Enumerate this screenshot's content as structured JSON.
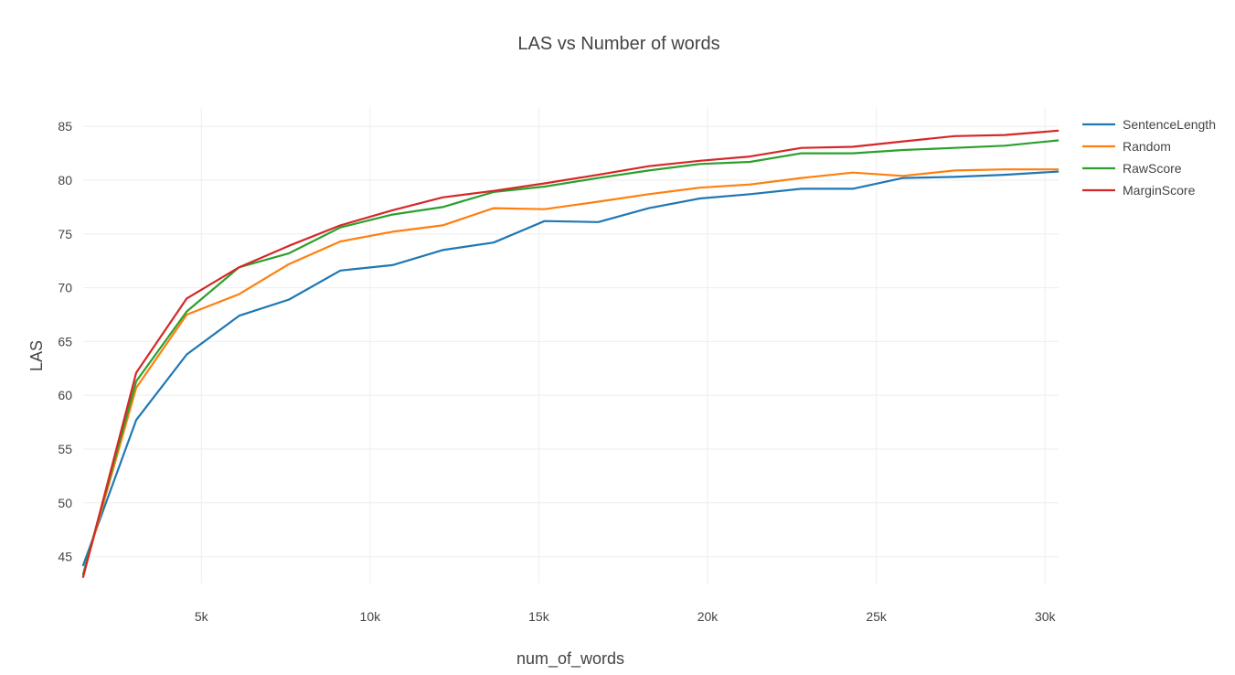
{
  "chart_data": {
    "type": "line",
    "title": "LAS vs Number of words",
    "xlabel": "num_of_words",
    "ylabel": "LAS",
    "xlim": [
      1500,
      30400
    ],
    "ylim": [
      42.5,
      86.8
    ],
    "xticks": [
      5000,
      10000,
      15000,
      20000,
      25000,
      30000
    ],
    "xtick_labels": [
      "5k",
      "10k",
      "15k",
      "20k",
      "25k",
      "30k"
    ],
    "yticks": [
      45,
      50,
      55,
      60,
      65,
      70,
      75,
      80,
      85
    ],
    "ytick_labels": [
      "45",
      "50",
      "55",
      "60",
      "65",
      "70",
      "75",
      "80",
      "85"
    ],
    "grid": true,
    "legend_position": "top-right",
    "x": [
      1500,
      3070,
      4570,
      6120,
      7600,
      9120,
      10660,
      12150,
      13660,
      15170,
      16760,
      18260,
      19770,
      21260,
      22780,
      24300,
      25790,
      27320,
      28800,
      30380
    ],
    "series": [
      {
        "name": "SentenceLength",
        "color": "#1f77b4",
        "values": [
          44.2,
          57.7,
          63.8,
          67.4,
          68.9,
          71.6,
          72.1,
          73.5,
          74.2,
          76.2,
          76.1,
          77.4,
          78.3,
          78.7,
          79.2,
          79.2,
          80.2,
          80.3,
          80.5,
          80.8
        ]
      },
      {
        "name": "Random",
        "color": "#ff7f0e",
        "values": [
          43.3,
          60.7,
          67.5,
          69.4,
          72.2,
          74.3,
          75.2,
          75.8,
          77.4,
          77.3,
          78.0,
          78.7,
          79.3,
          79.6,
          80.2,
          80.7,
          80.4,
          80.9,
          81.0,
          81.0
        ]
      },
      {
        "name": "RawScore",
        "color": "#2ca02c",
        "values": [
          43.4,
          61.3,
          67.8,
          71.9,
          73.2,
          75.6,
          76.8,
          77.5,
          78.9,
          79.4,
          80.2,
          80.9,
          81.5,
          81.7,
          82.5,
          82.5,
          82.8,
          83.0,
          83.2,
          83.7
        ]
      },
      {
        "name": "MarginScore",
        "color": "#d62728",
        "values": [
          43.1,
          62.1,
          69.0,
          71.9,
          73.9,
          75.8,
          77.2,
          78.4,
          79.0,
          79.7,
          80.5,
          81.3,
          81.8,
          82.2,
          83.0,
          83.1,
          83.6,
          84.1,
          84.2,
          84.6
        ]
      }
    ]
  }
}
